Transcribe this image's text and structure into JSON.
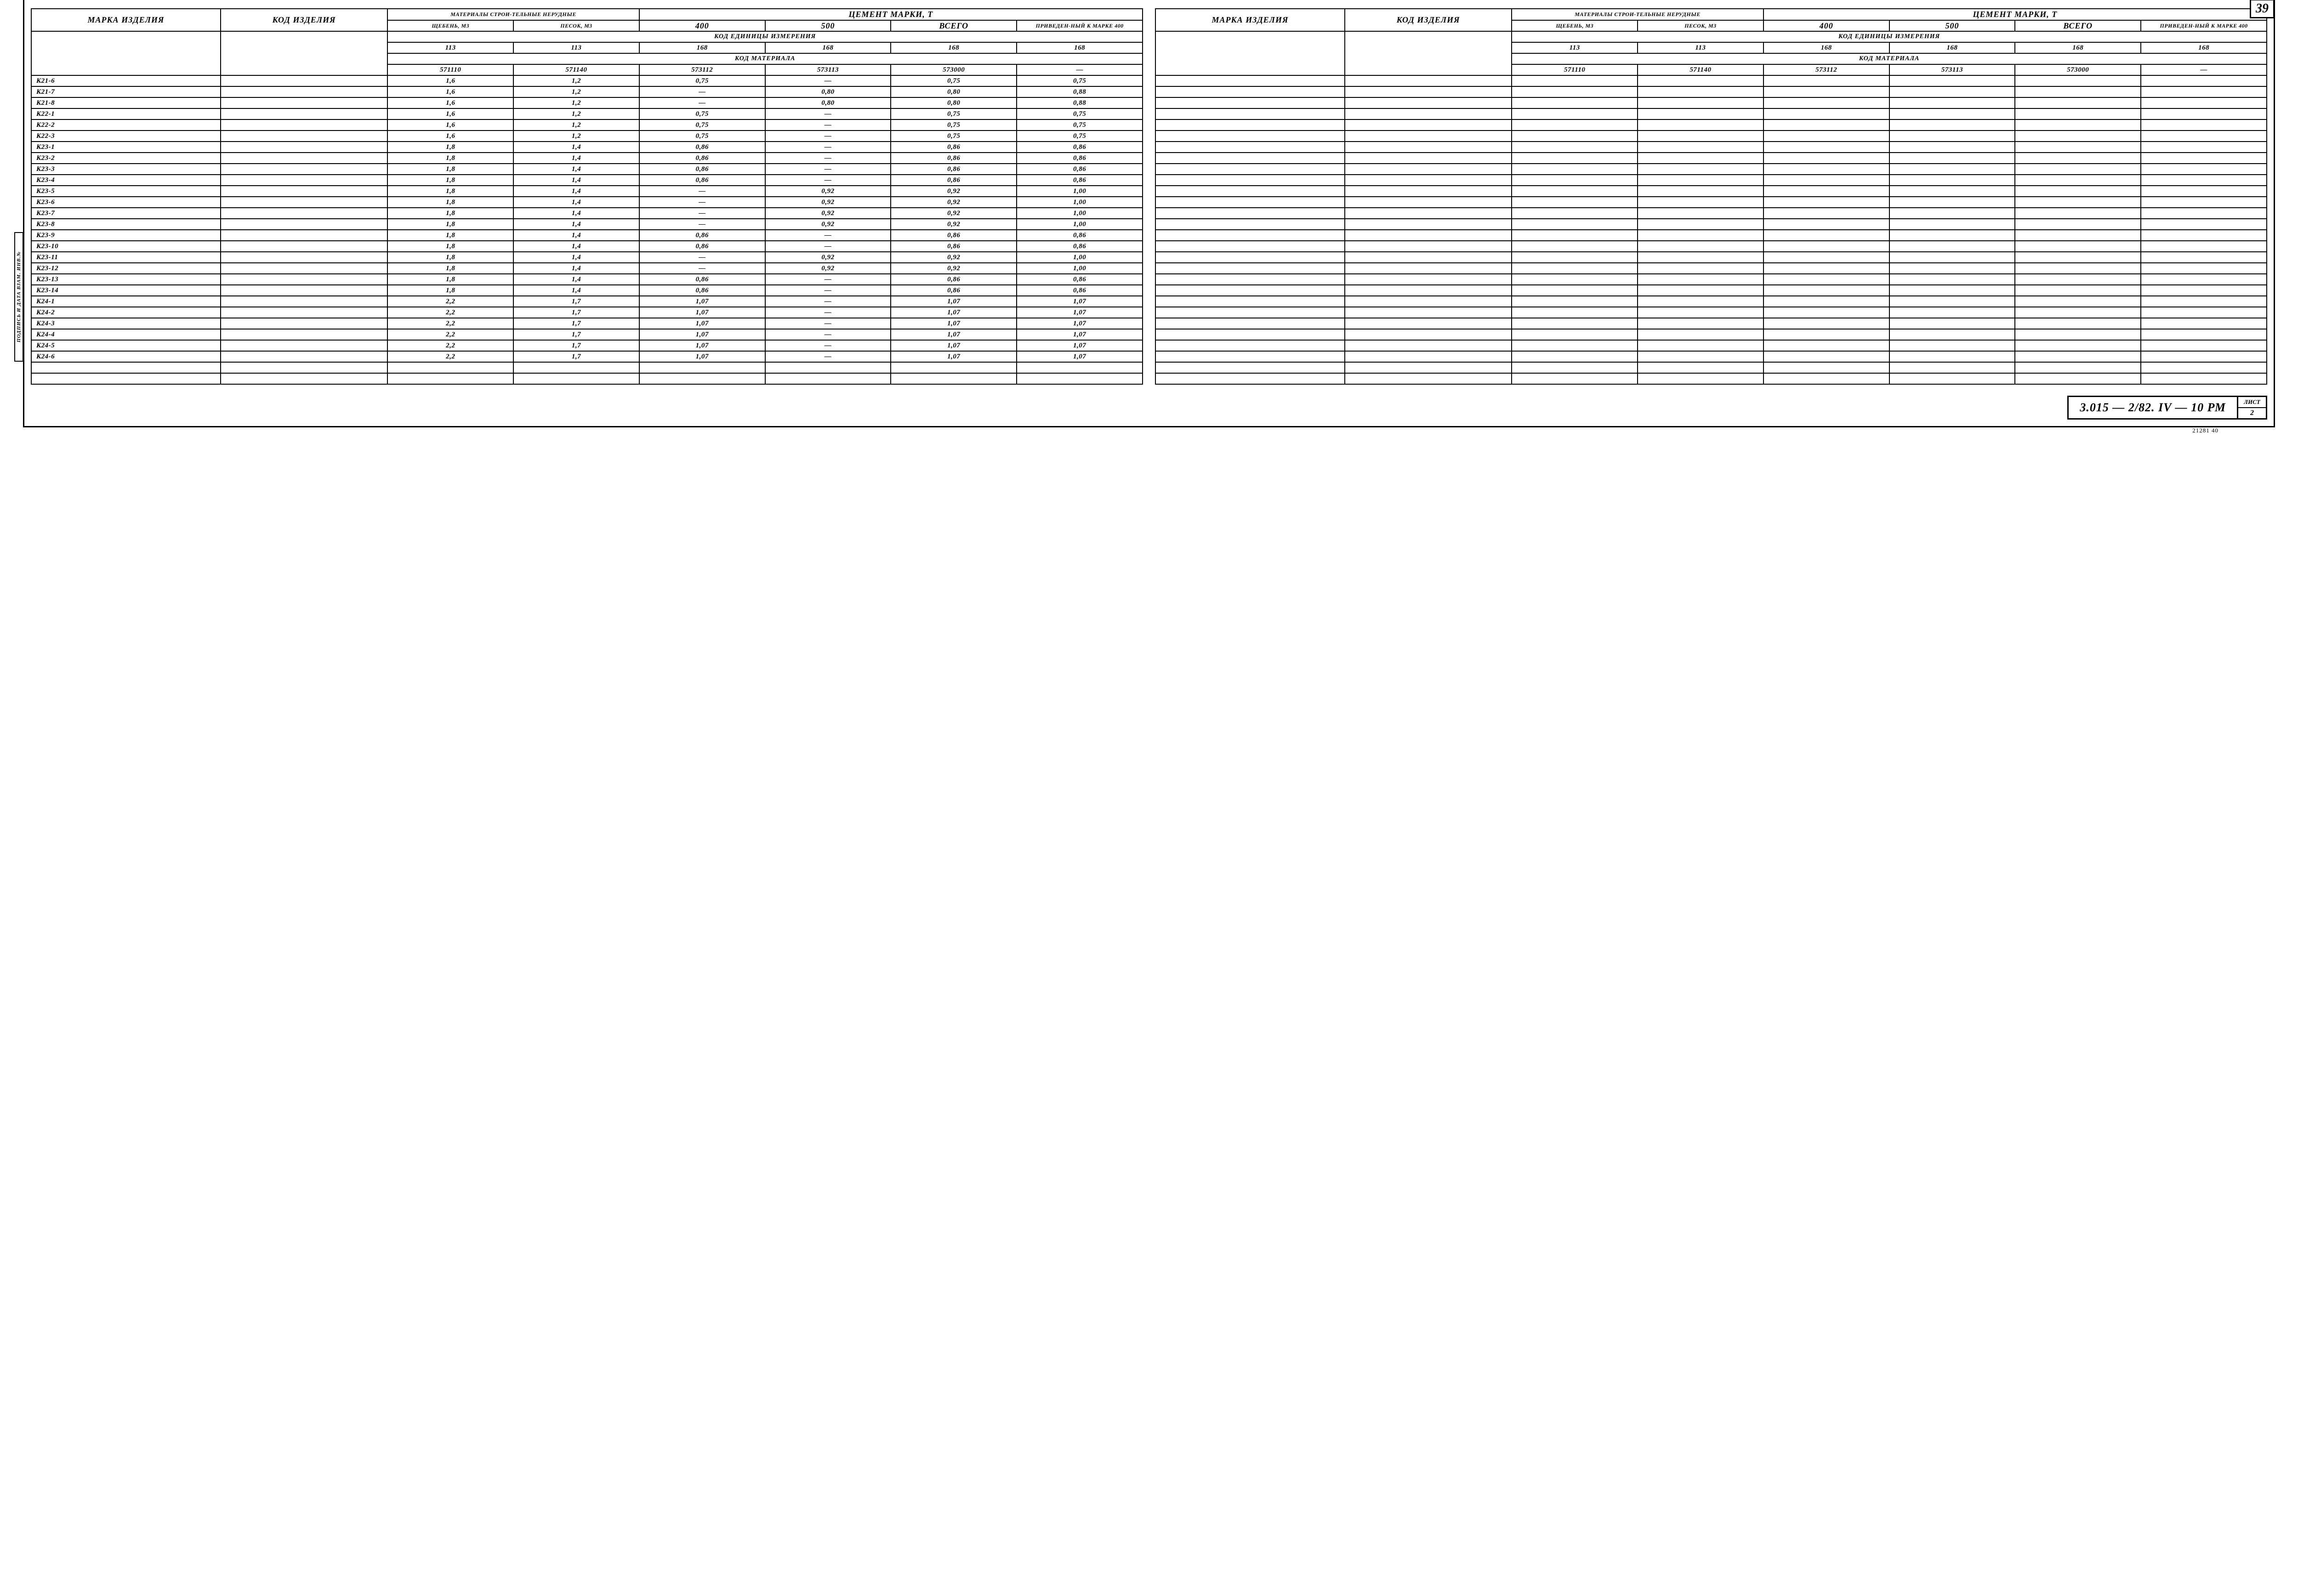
{
  "page_number": "39",
  "side_label": "ПОДПИСЬ И ДАТА  ВЗАМ. ИНВ.№",
  "footer_note": "21281   40",
  "title_block": {
    "code": "3.015 — 2/82. IV — 10 РМ",
    "sheet_label": "ЛИСТ",
    "sheet_num": "2"
  },
  "headers": {
    "col_marka": "МАРКА ИЗДЕЛИЯ",
    "col_kod": "КОД ИЗДЕЛИЯ",
    "mat_group": "МАТЕРИАЛЫ СТРОИ-ТЕЛЬНЫЕ НЕРУДНЫЕ",
    "cement_group": "ЦЕМЕНТ МАРКИ, Т",
    "sheben": "ЩЕБЕНЬ, М3",
    "pesok": "ПЕСОК, М3",
    "c400": "400",
    "c500": "500",
    "vsego": "ВСЕГО",
    "priveden": "ПРИВЕДЕН-НЫЙ К МАРКЕ 400",
    "row_kod_ed": "КОД  ЕДИНИЦЫ  ИЗМЕРЕНИЯ",
    "row_kod_mat": "КОД  МАТЕРИАЛА",
    "units": [
      "113",
      "113",
      "168",
      "168",
      "168",
      "168"
    ],
    "matcodes": [
      "571110",
      "571140",
      "573112",
      "573113",
      "573000",
      "—"
    ]
  },
  "rows": [
    {
      "m": "К21-6",
      "k": "",
      "v": [
        "1,6",
        "1,2",
        "0,75",
        "—",
        "0,75",
        "0,75"
      ]
    },
    {
      "m": "К21-7",
      "k": "",
      "v": [
        "1,6",
        "1,2",
        "—",
        "0,80",
        "0,80",
        "0,88"
      ]
    },
    {
      "m": "К21-8",
      "k": "",
      "v": [
        "1,6",
        "1,2",
        "—",
        "0,80",
        "0,80",
        "0,88"
      ]
    },
    {
      "m": "К22-1",
      "k": "",
      "v": [
        "1,6",
        "1,2",
        "0,75",
        "—",
        "0,75",
        "0,75"
      ]
    },
    {
      "m": "К22-2",
      "k": "",
      "v": [
        "1,6",
        "1,2",
        "0,75",
        "—",
        "0,75",
        "0,75"
      ]
    },
    {
      "m": "К22-3",
      "k": "",
      "v": [
        "1,6",
        "1,2",
        "0,75",
        "—",
        "0,75",
        "0,75"
      ]
    },
    {
      "m": "К23-1",
      "k": "",
      "v": [
        "1,8",
        "1,4",
        "0,86",
        "—",
        "0,86",
        "0,86"
      ]
    },
    {
      "m": "К23-2",
      "k": "",
      "v": [
        "1,8",
        "1,4",
        "0,86",
        "—",
        "0,86",
        "0,86"
      ]
    },
    {
      "m": "К23-3",
      "k": "",
      "v": [
        "1,8",
        "1,4",
        "0,86",
        "—",
        "0,86",
        "0,86"
      ]
    },
    {
      "m": "К23-4",
      "k": "",
      "v": [
        "1,8",
        "1,4",
        "0,86",
        "—",
        "0,86",
        "0,86"
      ]
    },
    {
      "m": "К23-5",
      "k": "",
      "v": [
        "1,8",
        "1,4",
        "—",
        "0,92",
        "0,92",
        "1,00"
      ]
    },
    {
      "m": "К23-6",
      "k": "",
      "v": [
        "1,8",
        "1,4",
        "—",
        "0,92",
        "0,92",
        "1,00"
      ]
    },
    {
      "m": "К23-7",
      "k": "",
      "v": [
        "1,8",
        "1,4",
        "—",
        "0,92",
        "0,92",
        "1,00"
      ]
    },
    {
      "m": "К23-8",
      "k": "",
      "v": [
        "1,8",
        "1,4",
        "—",
        "0,92",
        "0,92",
        "1,00"
      ]
    },
    {
      "m": "К23-9",
      "k": "",
      "v": [
        "1,8",
        "1,4",
        "0,86",
        "—",
        "0,86",
        "0,86"
      ]
    },
    {
      "m": "К23-10",
      "k": "",
      "v": [
        "1,8",
        "1,4",
        "0,86",
        "—",
        "0,86",
        "0,86"
      ]
    },
    {
      "m": "К23-11",
      "k": "",
      "v": [
        "1,8",
        "1,4",
        "—",
        "0,92",
        "0,92",
        "1,00"
      ]
    },
    {
      "m": "К23-12",
      "k": "",
      "v": [
        "1,8",
        "1,4",
        "—",
        "0,92",
        "0,92",
        "1,00"
      ]
    },
    {
      "m": "К23-13",
      "k": "",
      "v": [
        "1,8",
        "1,4",
        "0,86",
        "—",
        "0,86",
        "0,86"
      ]
    },
    {
      "m": "К23-14",
      "k": "",
      "v": [
        "1,8",
        "1,4",
        "0,86",
        "—",
        "0,86",
        "0,86"
      ]
    },
    {
      "m": "К24-1",
      "k": "",
      "v": [
        "2,2",
        "1,7",
        "1,07",
        "—",
        "1,07",
        "1,07"
      ]
    },
    {
      "m": "К24-2",
      "k": "",
      "v": [
        "2,2",
        "1,7",
        "1,07",
        "—",
        "1,07",
        "1,07"
      ]
    },
    {
      "m": "К24-3",
      "k": "",
      "v": [
        "2,2",
        "1,7",
        "1,07",
        "—",
        "1,07",
        "1,07"
      ]
    },
    {
      "m": "К24-4",
      "k": "",
      "v": [
        "2,2",
        "1,7",
        "1,07",
        "—",
        "1,07",
        "1,07"
      ]
    },
    {
      "m": "К24-5",
      "k": "",
      "v": [
        "2,2",
        "1,7",
        "1,07",
        "—",
        "1,07",
        "1,07"
      ]
    },
    {
      "m": "К24-6",
      "k": "",
      "v": [
        "2,2",
        "1,7",
        "1,07",
        "—",
        "1,07",
        "1,07"
      ]
    },
    {
      "m": "",
      "k": "",
      "v": [
        "",
        "",
        "",
        "",
        "",
        ""
      ]
    },
    {
      "m": "",
      "k": "",
      "v": [
        "",
        "",
        "",
        "",
        "",
        ""
      ]
    }
  ],
  "empty_rows_right": 28
}
